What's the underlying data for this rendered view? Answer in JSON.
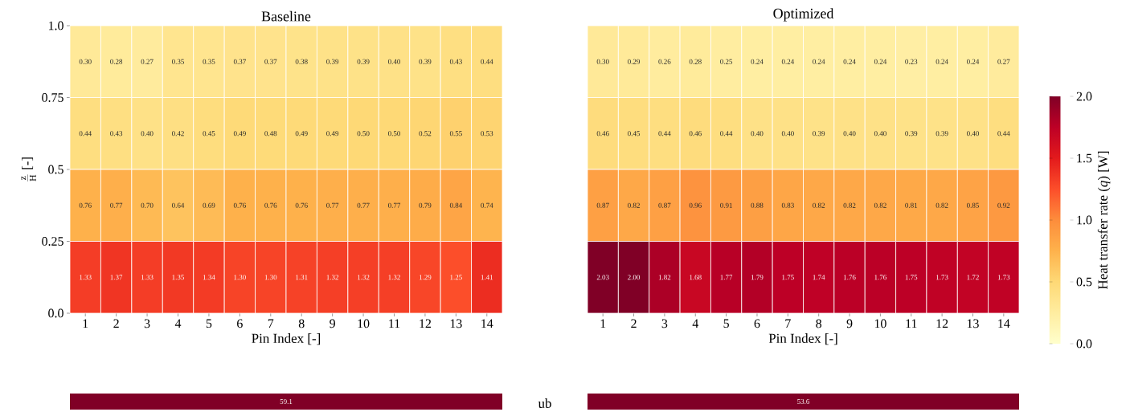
{
  "chart_data": [
    {
      "type": "heatmap",
      "title": "Baseline",
      "xlabel": "Pin Index [-]",
      "ylabel": "\\frac{\\mathrm{z}}{\\mathrm{H}}\\ \\mbox{[-]}",
      "categories": [
        "1",
        "2",
        "3",
        "4",
        "5",
        "6",
        "7",
        "8",
        "9",
        "10",
        "11",
        "12",
        "13",
        "14"
      ],
      "ylim": [
        0,
        1
      ],
      "yticks": [
        {
          "value": 0,
          "label": "0.0"
        },
        0.25,
        {
          "value": 0.5,
          "label": "0.5"
        },
        0.75,
        {
          "value": 1,
          "label": "1.0"
        }
      ],
      "cells": [
        [
          0.3,
          0.28,
          0.27,
          0.35,
          0.35,
          0.37,
          0.37,
          0.38,
          0.39,
          0.39,
          0.4,
          0.39,
          0.43,
          0.44
        ],
        [
          0.44,
          0.43,
          0.4,
          0.42,
          0.45,
          0.49,
          0.48,
          0.49,
          0.49,
          0.5,
          0.5,
          0.52,
          0.55,
          0.53
        ],
        [
          0.76,
          0.77,
          0.7,
          0.64,
          0.69,
          0.76,
          0.76,
          0.76,
          0.77,
          0.77,
          0.77,
          0.79,
          0.84,
          0.74
        ],
        [
          1.33,
          1.37,
          1.33,
          1.35,
          1.34,
          1.3,
          1.3,
          1.31,
          1.32,
          1.32,
          1.32,
          1.29,
          1.25,
          1.41
        ]
      ],
      "cell_labels": [
        [
          "0.30",
          "0.28",
          "0.27",
          "0.35",
          "0.35",
          "0.37",
          "0.37",
          "0.38",
          "0.39",
          "0.39",
          "0.40",
          "0.39",
          "0.43",
          "0.44"
        ],
        [
          "0.44",
          "0.43",
          "0.40",
          "0.42",
          "0.45",
          "0.49",
          "0.48",
          "0.49",
          "0.49",
          "0.50",
          "0.50",
          "0.52",
          "0.55",
          "0.53"
        ],
        [
          "0.76",
          "0.77",
          "0.70",
          "0.64",
          "0.69",
          "0.76",
          "0.76",
          "0.76",
          "0.77",
          "0.77",
          "0.77",
          "0.79",
          "0.84",
          "0.74"
        ],
        [
          "1.33",
          "1.37",
          "1.33",
          "1.35",
          "1.34",
          "1.30",
          "1.30",
          "1.31",
          "1.32",
          "1.32",
          "1.32",
          "1.29",
          "1.25",
          "1.41"
        ]
      ]
    },
    {
      "type": "heatmap",
      "title": "Optimized",
      "xlabel": "Pin Index [-]",
      "categories": [
        "1",
        "2",
        "3",
        "4",
        "5",
        "6",
        "7",
        "8",
        "9",
        "10",
        "11",
        "12",
        "13",
        "14"
      ],
      "ylim": [
        0,
        1
      ],
      "tick_labels": "x",
      "cells": [
        [
          0.3,
          0.29,
          0.26,
          0.28,
          0.25,
          0.24,
          0.24,
          0.24,
          0.24,
          0.24,
          0.23,
          0.24,
          0.24,
          0.27
        ],
        [
          0.46,
          0.45,
          0.44,
          0.46,
          0.44,
          0.4,
          0.4,
          0.39,
          0.4,
          0.4,
          0.39,
          0.39,
          0.4,
          0.44
        ],
        [
          0.87,
          0.82,
          0.87,
          0.96,
          0.91,
          0.88,
          0.83,
          0.82,
          0.82,
          0.82,
          0.81,
          0.82,
          0.85,
          0.92
        ],
        [
          2.03,
          2.0,
          1.82,
          1.68,
          1.77,
          1.79,
          1.75,
          1.74,
          1.76,
          1.76,
          1.75,
          1.73,
          1.72,
          1.73
        ]
      ],
      "cell_labels": [
        [
          "0.30",
          "0.29",
          "0.26",
          "0.28",
          "0.25",
          "0.24",
          "0.24",
          "0.24",
          "0.24",
          "0.24",
          "0.23",
          "0.24",
          "0.24",
          "0.27"
        ],
        [
          "0.46",
          "0.45",
          "0.44",
          "0.46",
          "0.44",
          "0.40",
          "0.40",
          "0.39",
          "0.40",
          "0.40",
          "0.39",
          "0.39",
          "0.40",
          "0.44"
        ],
        [
          "0.87",
          "0.82",
          "0.87",
          "0.96",
          "0.91",
          "0.88",
          "0.83",
          "0.82",
          "0.82",
          "0.82",
          "0.81",
          "0.82",
          "0.85",
          "0.92"
        ],
        [
          "2.03",
          "2.00",
          "1.82",
          "1.68",
          "1.77",
          "1.79",
          "1.75",
          "1.74",
          "1.76",
          "1.76",
          "1.75",
          "1.73",
          "1.72",
          "1.73"
        ]
      ],
      "clim": [
        0,
        2
      ],
      "cticks": [
        {
          "value": 0,
          "label": "0.0"
        },
        {
          "value": 0.5,
          "label": "0.5"
        },
        {
          "value": 1,
          "label": "1.0"
        },
        {
          "value": 1.5,
          "label": "1.5"
        },
        {
          "value": 2,
          "label": "2.0"
        }
      ],
      "clabel": "Heat transfer rate (*q*) [W]"
    },
    {
      "type": "other",
      "categories": [
        null,
        null
      ],
      "values": [
        59.1,
        53.6
      ],
      "color": "#800026",
      "data_labels": true,
      "annotations": [
        "ub"
      ]
    }
  ]
}
